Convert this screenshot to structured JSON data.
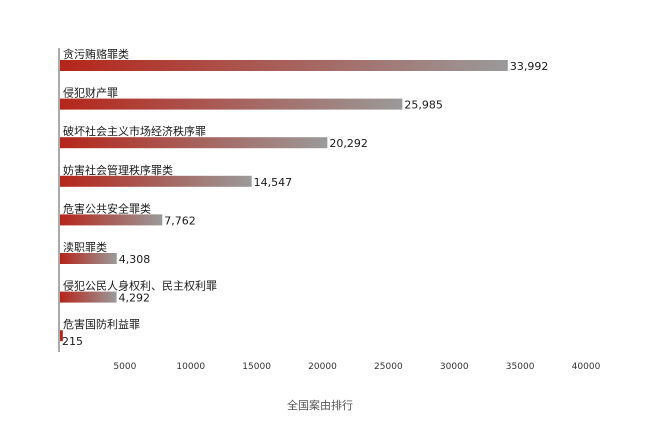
{
  "chart_data": {
    "type": "bar",
    "orientation": "horizontal",
    "categories": [
      "贪污贿赂罪类",
      "侵犯财产罪",
      "破坏社会主义市场经济秩序罪",
      "妨害社会管理秩序罪类",
      "危害公共安全罪类",
      "渎职罪类",
      "侵犯公民人身权利、民主权利罪",
      "危害国防利益罪"
    ],
    "values": [
      33992,
      25985,
      20292,
      14547,
      7762,
      4308,
      4292,
      215
    ],
    "value_labels": [
      "33,992",
      "25,985",
      "20,292",
      "14,547",
      "7,762",
      "4,308",
      "4,292",
      "215"
    ],
    "xlabel": "全国案由排行",
    "ylabel": "",
    "xlim": [
      0,
      40000
    ],
    "x_ticks": [
      5000,
      10000,
      15000,
      20000,
      25000,
      30000,
      35000,
      40000
    ],
    "x_tick_labels": [
      "5000",
      "10000",
      "15000",
      "20000",
      "25000",
      "30000",
      "35000",
      "40000"
    ],
    "grid": false,
    "bar_gradient": {
      "start": "#b5251a",
      "end": "#9a9a9a"
    }
  }
}
